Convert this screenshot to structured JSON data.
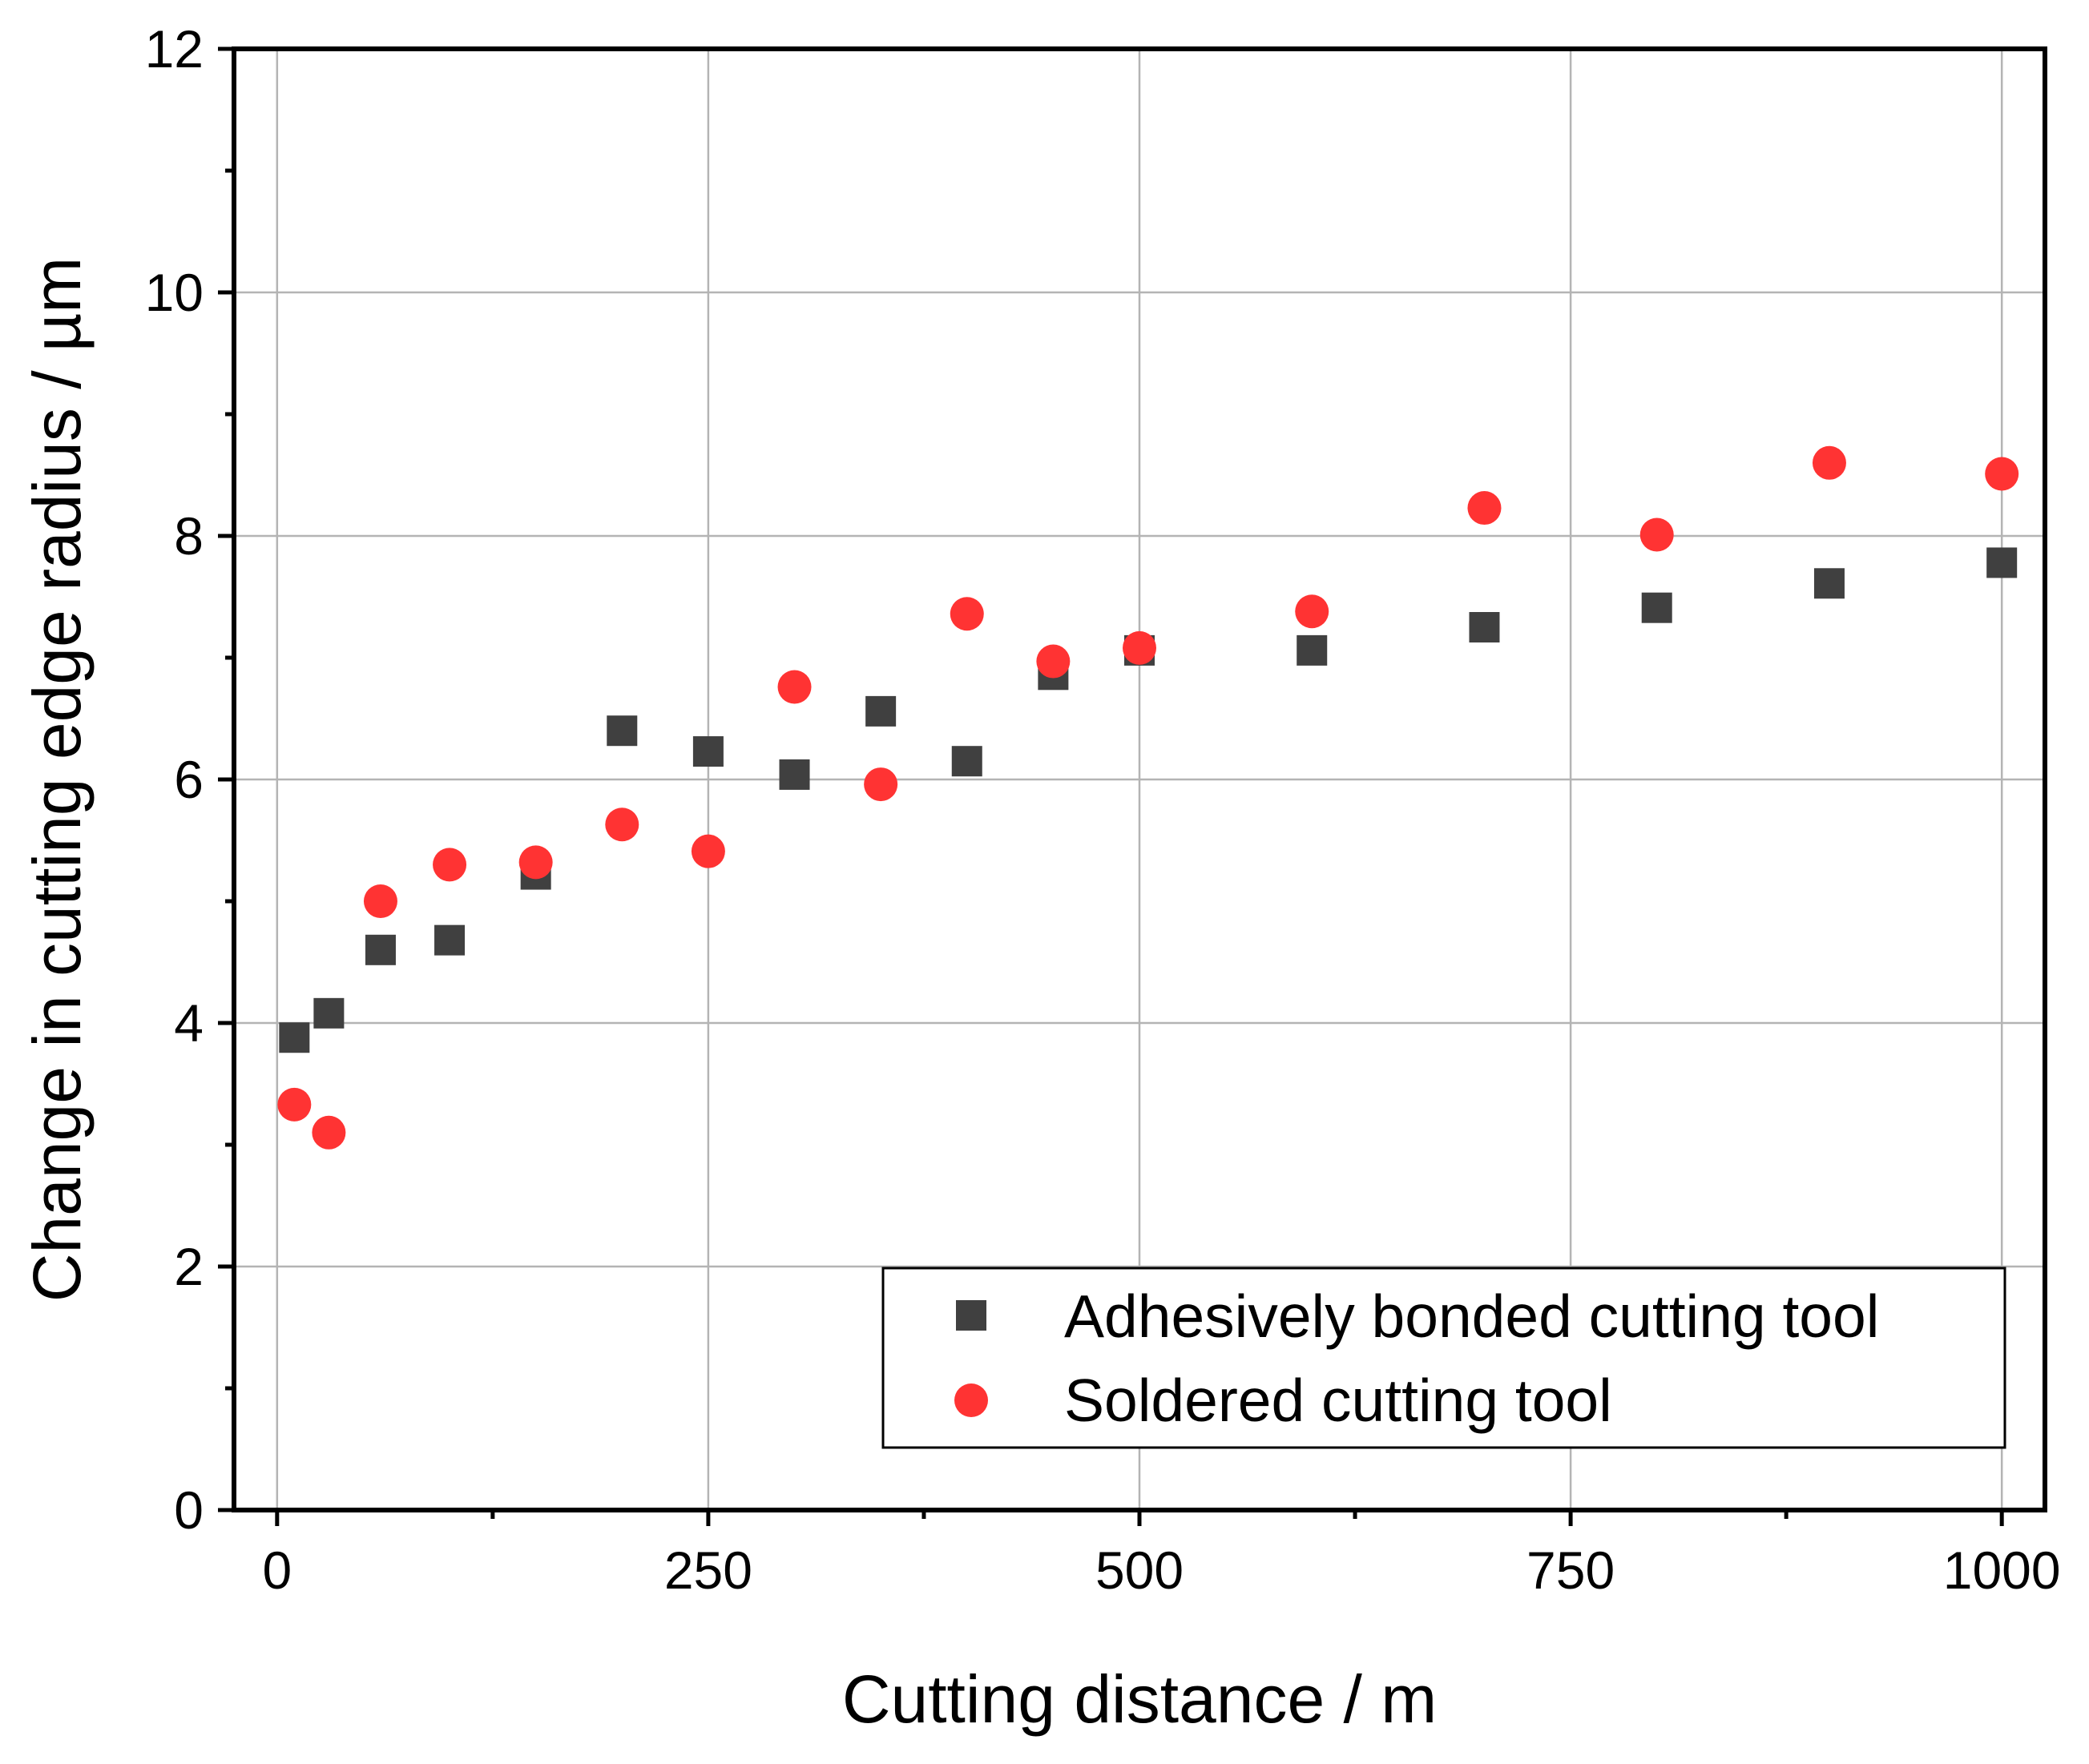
{
  "chart_data": {
    "type": "scatter",
    "title": "",
    "xlabel": "Cutting distance / m",
    "ylabel": "Change in cutting edge radius / µm",
    "xlim": [
      -25,
      1025
    ],
    "ylim": [
      0,
      12
    ],
    "xticks": [
      0,
      250,
      500,
      750,
      1000
    ],
    "xtick_labels": [
      "0",
      "250",
      "500",
      "750",
      "1000"
    ],
    "yticks": [
      0,
      2,
      4,
      6,
      8,
      10,
      12
    ],
    "ytick_labels": [
      "0",
      "2",
      "4",
      "6",
      "8",
      "10",
      "12"
    ],
    "grid": true,
    "legend_position": "bottom-right",
    "series": [
      {
        "name": "Adhesively bonded cutting tool",
        "marker": "square",
        "color": "#404040",
        "x": [
          10,
          30,
          60,
          100,
          150,
          200,
          250,
          300,
          350,
          400,
          450,
          500,
          600,
          700,
          800,
          900,
          1000
        ],
        "y": [
          3.88,
          4.08,
          4.6,
          4.68,
          5.22,
          6.4,
          6.23,
          6.04,
          6.56,
          6.15,
          6.86,
          7.06,
          7.06,
          7.25,
          7.41,
          7.61,
          7.78
        ]
      },
      {
        "name": "Soldered cutting tool",
        "marker": "circle",
        "color": "#ff3333",
        "x": [
          10,
          30,
          60,
          100,
          150,
          200,
          250,
          300,
          350,
          400,
          450,
          500,
          600,
          700,
          800,
          900,
          1000
        ],
        "y": [
          3.33,
          3.1,
          5.0,
          5.3,
          5.32,
          5.63,
          5.41,
          6.76,
          5.96,
          7.36,
          6.97,
          7.08,
          7.38,
          8.23,
          8.01,
          8.6,
          8.51
        ]
      }
    ]
  }
}
